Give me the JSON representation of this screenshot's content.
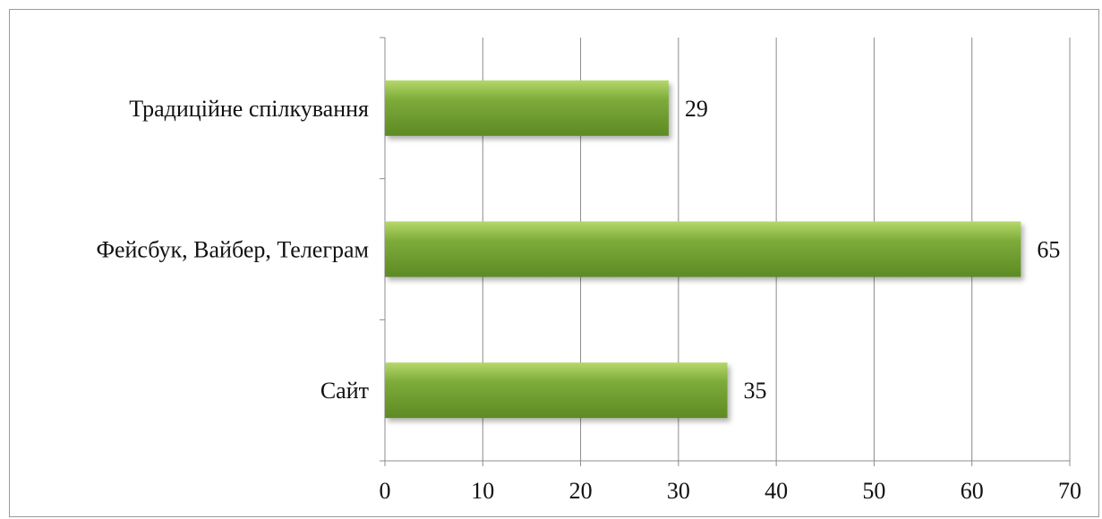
{
  "chart_data": {
    "type": "bar",
    "orientation": "horizontal",
    "categories": [
      "Традиційне спілкування",
      "Фейсбук, Вайбер, Телеграм",
      "Сайт"
    ],
    "values": [
      29,
      65,
      35
    ],
    "data_labels": [
      "29",
      "65",
      "35"
    ],
    "xlim": [
      0,
      70
    ],
    "xticks": [
      0,
      10,
      20,
      30,
      40,
      50,
      60,
      70
    ],
    "xtick_labels": [
      "0",
      "10",
      "20",
      "30",
      "40",
      "50",
      "60",
      "70"
    ],
    "grid": "vertical",
    "legend": "none",
    "bar_color": "#7dab3a",
    "bar_highlight_color": "#b5d86a",
    "bar_shadow_color": "#5d8a24"
  }
}
